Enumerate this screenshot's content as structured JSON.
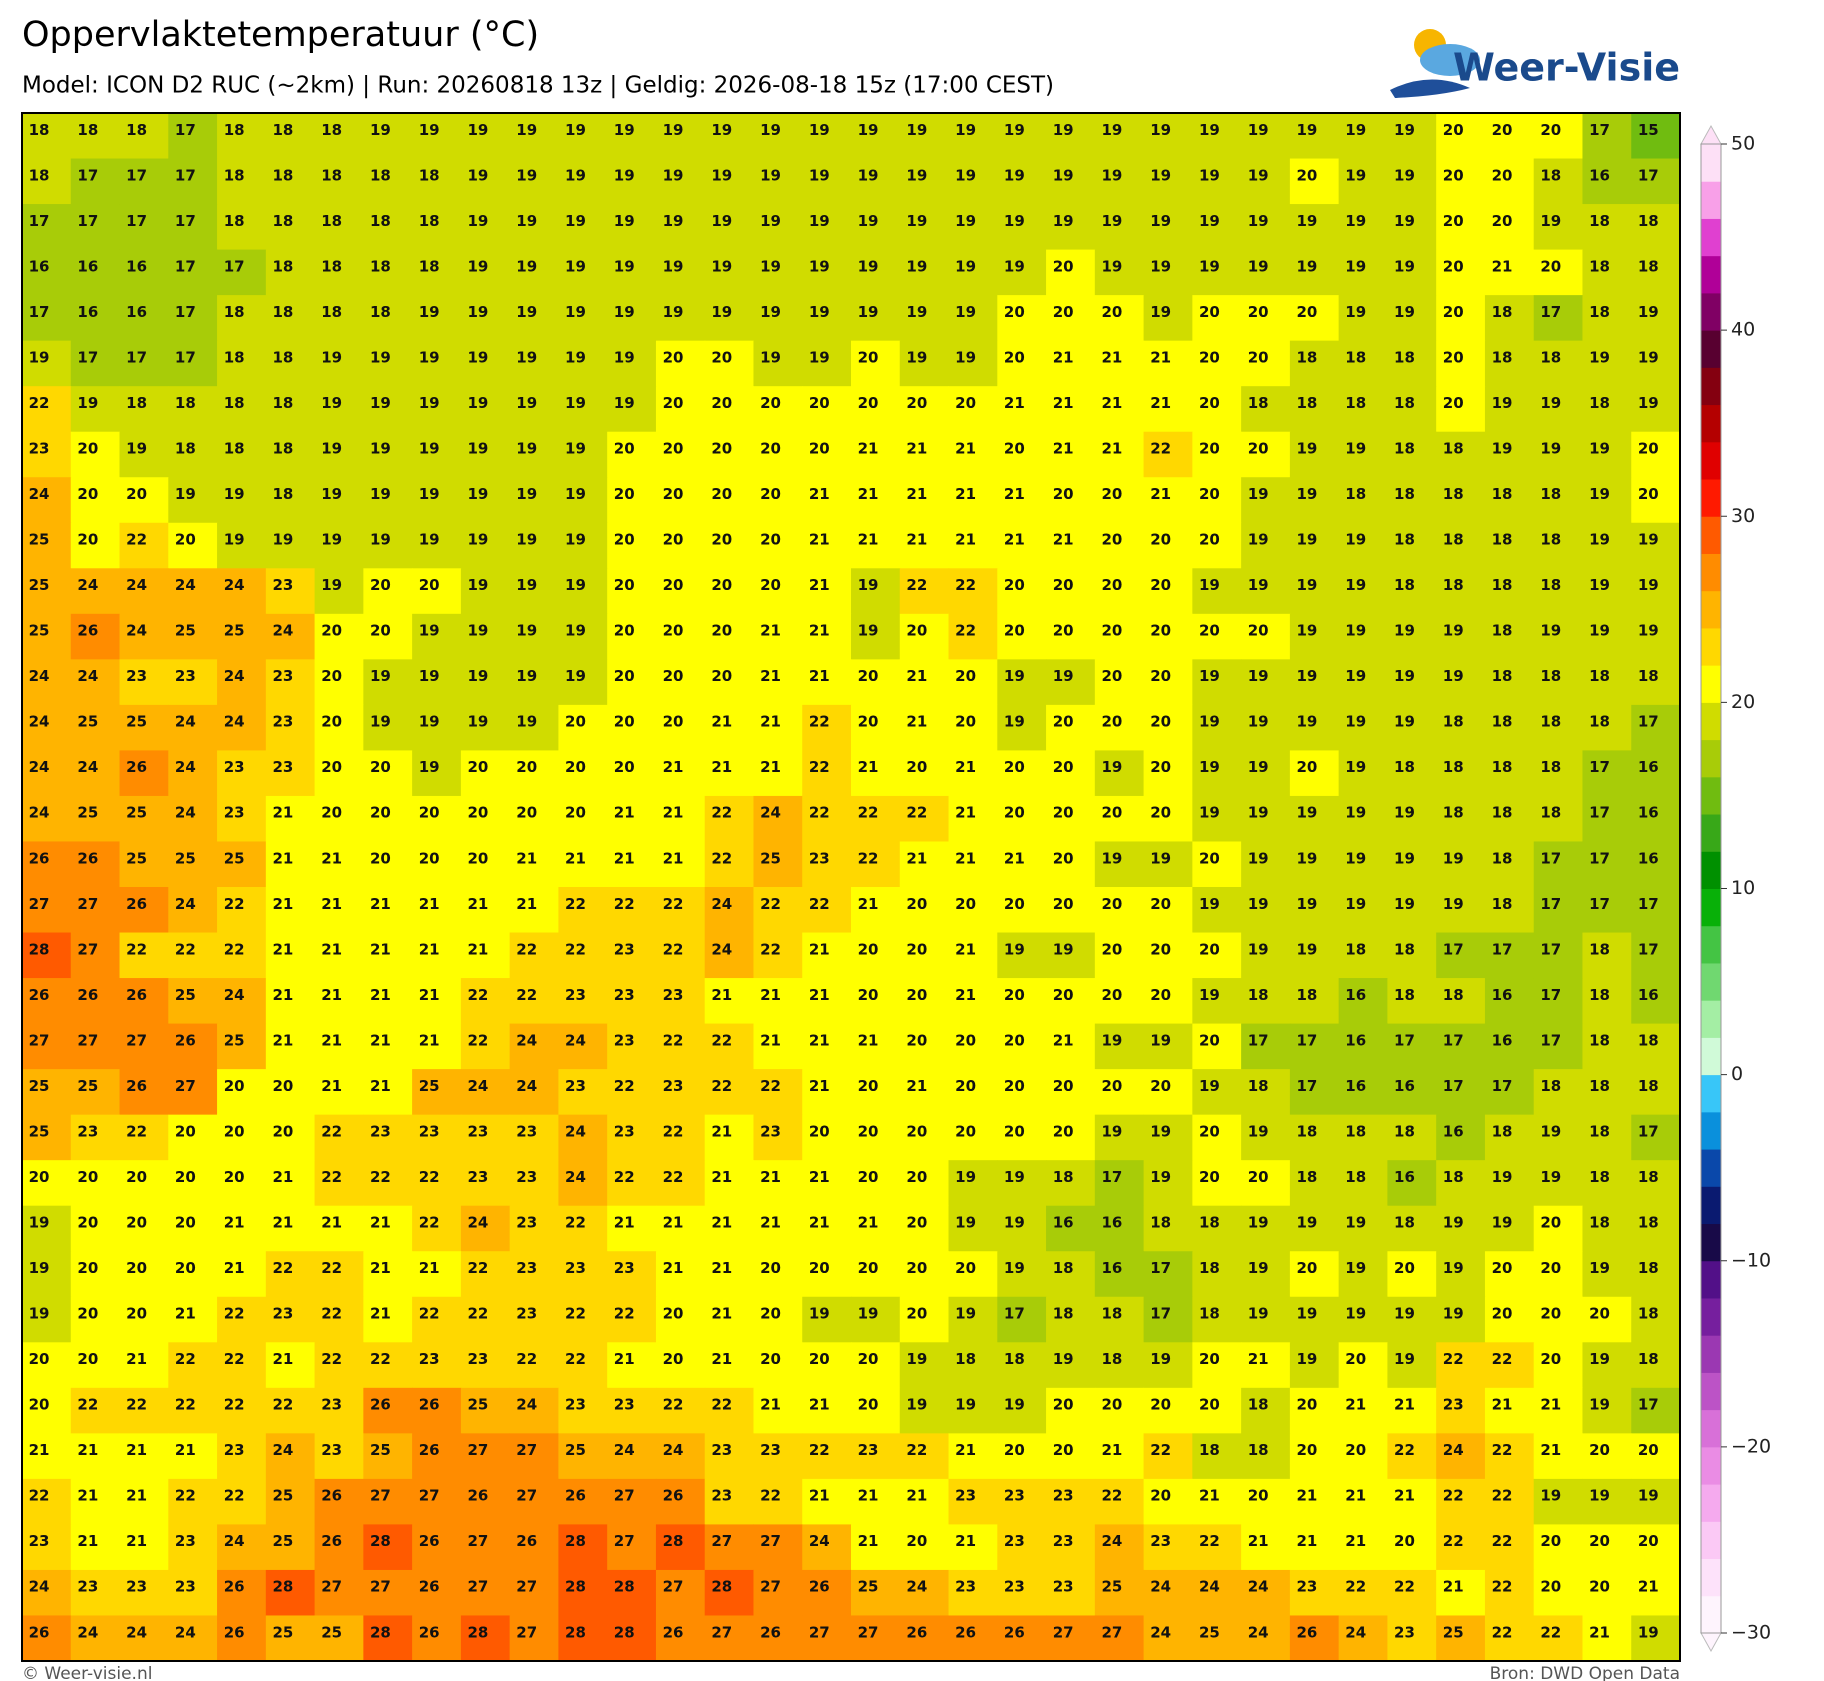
{
  "header": {
    "title": "Oppervlaktetemperatuur (°C)",
    "subtitle": "Model: ICON D2 RUC (~2km)  |  Run: 20260818 13z  |  Geldig: 2026-08-18 15z (17:00 CEST)",
    "logo": "Weer-Visie"
  },
  "grid": {
    "rows": [
      [
        18,
        18,
        18,
        17,
        18,
        18,
        18,
        19,
        19,
        19,
        19,
        19,
        19,
        19,
        19,
        19,
        19,
        19,
        19,
        19,
        19,
        19,
        19,
        19,
        19,
        19,
        19,
        19,
        19,
        20,
        20,
        20,
        17,
        15
      ],
      [
        18,
        17,
        17,
        17,
        18,
        18,
        18,
        18,
        18,
        19,
        19,
        19,
        19,
        19,
        19,
        19,
        19,
        19,
        19,
        19,
        19,
        19,
        19,
        19,
        19,
        19,
        20,
        19,
        19,
        20,
        20,
        18,
        16,
        17
      ],
      [
        17,
        17,
        17,
        17,
        18,
        18,
        18,
        18,
        18,
        19,
        19,
        19,
        19,
        19,
        19,
        19,
        19,
        19,
        19,
        19,
        19,
        19,
        19,
        19,
        19,
        19,
        19,
        19,
        19,
        20,
        20,
        19,
        18,
        18
      ],
      [
        16,
        16,
        16,
        17,
        17,
        18,
        18,
        18,
        18,
        19,
        19,
        19,
        19,
        19,
        19,
        19,
        19,
        19,
        19,
        19,
        19,
        20,
        19,
        19,
        19,
        19,
        19,
        19,
        19,
        20,
        21,
        20,
        18,
        18
      ],
      [
        17,
        16,
        16,
        17,
        18,
        18,
        18,
        18,
        19,
        19,
        19,
        19,
        19,
        19,
        19,
        19,
        19,
        19,
        19,
        19,
        20,
        20,
        20,
        19,
        20,
        20,
        20,
        19,
        19,
        20,
        18,
        17,
        18,
        19
      ],
      [
        19,
        17,
        17,
        17,
        18,
        18,
        19,
        19,
        19,
        19,
        19,
        19,
        19,
        20,
        20,
        19,
        19,
        20,
        19,
        19,
        20,
        21,
        21,
        21,
        20,
        20,
        18,
        18,
        18,
        20,
        18,
        18,
        19,
        19
      ],
      [
        22,
        19,
        18,
        18,
        18,
        18,
        19,
        19,
        19,
        19,
        19,
        19,
        19,
        20,
        20,
        20,
        20,
        20,
        20,
        20,
        21,
        21,
        21,
        21,
        20,
        18,
        18,
        18,
        18,
        20,
        19,
        19,
        18,
        19
      ],
      [
        23,
        20,
        19,
        18,
        18,
        18,
        19,
        19,
        19,
        19,
        19,
        19,
        20,
        20,
        20,
        20,
        20,
        21,
        21,
        21,
        20,
        21,
        21,
        22,
        20,
        20,
        19,
        19,
        18,
        18,
        19,
        19,
        19,
        20
      ],
      [
        24,
        20,
        20,
        19,
        19,
        18,
        19,
        19,
        19,
        19,
        19,
        19,
        20,
        20,
        20,
        20,
        21,
        21,
        21,
        21,
        21,
        20,
        20,
        21,
        20,
        19,
        19,
        18,
        18,
        18,
        18,
        18,
        19,
        20
      ],
      [
        25,
        20,
        22,
        20,
        19,
        19,
        19,
        19,
        19,
        19,
        19,
        19,
        20,
        20,
        20,
        20,
        21,
        21,
        21,
        21,
        21,
        21,
        20,
        20,
        20,
        19,
        19,
        19,
        18,
        18,
        18,
        18,
        19,
        19
      ],
      [
        25,
        24,
        24,
        24,
        24,
        23,
        19,
        20,
        20,
        19,
        19,
        19,
        20,
        20,
        20,
        20,
        21,
        19,
        22,
        22,
        20,
        20,
        20,
        20,
        19,
        19,
        19,
        19,
        18,
        18,
        18,
        18,
        19,
        19
      ],
      [
        25,
        26,
        24,
        25,
        25,
        24,
        20,
        20,
        19,
        19,
        19,
        19,
        20,
        20,
        20,
        21,
        21,
        19,
        20,
        22,
        20,
        20,
        20,
        20,
        20,
        20,
        19,
        19,
        19,
        19,
        18,
        19,
        19,
        19
      ],
      [
        24,
        24,
        23,
        23,
        24,
        23,
        20,
        19,
        19,
        19,
        19,
        19,
        20,
        20,
        20,
        21,
        21,
        20,
        21,
        20,
        19,
        19,
        20,
        20,
        19,
        19,
        19,
        19,
        19,
        19,
        18,
        18,
        18,
        18
      ],
      [
        24,
        25,
        25,
        24,
        24,
        23,
        20,
        19,
        19,
        19,
        19,
        20,
        20,
        20,
        21,
        21,
        22,
        20,
        21,
        20,
        19,
        20,
        20,
        20,
        19,
        19,
        19,
        19,
        19,
        18,
        18,
        18,
        18,
        17
      ],
      [
        24,
        24,
        26,
        24,
        23,
        23,
        20,
        20,
        19,
        20,
        20,
        20,
        20,
        21,
        21,
        21,
        22,
        21,
        20,
        21,
        20,
        20,
        19,
        20,
        19,
        19,
        20,
        19,
        18,
        18,
        18,
        18,
        17,
        16
      ],
      [
        24,
        25,
        25,
        24,
        23,
        21,
        20,
        20,
        20,
        20,
        20,
        20,
        21,
        21,
        22,
        24,
        22,
        22,
        22,
        21,
        20,
        20,
        20,
        20,
        19,
        19,
        19,
        19,
        19,
        18,
        18,
        18,
        17,
        16
      ],
      [
        26,
        26,
        25,
        25,
        25,
        21,
        21,
        20,
        20,
        20,
        21,
        21,
        21,
        21,
        22,
        25,
        23,
        22,
        21,
        21,
        21,
        20,
        19,
        19,
        20,
        19,
        19,
        19,
        19,
        19,
        18,
        17,
        17,
        16
      ],
      [
        27,
        27,
        26,
        24,
        22,
        21,
        21,
        21,
        21,
        21,
        21,
        22,
        22,
        22,
        24,
        22,
        22,
        21,
        20,
        20,
        20,
        20,
        20,
        20,
        19,
        19,
        19,
        19,
        19,
        19,
        18,
        17,
        17,
        17
      ],
      [
        28,
        27,
        22,
        22,
        22,
        21,
        21,
        21,
        21,
        21,
        22,
        22,
        23,
        22,
        24,
        22,
        21,
        20,
        20,
        21,
        19,
        19,
        20,
        20,
        20,
        19,
        19,
        18,
        18,
        17,
        17,
        17,
        18,
        17
      ],
      [
        26,
        26,
        26,
        25,
        24,
        21,
        21,
        21,
        21,
        22,
        22,
        23,
        23,
        23,
        21,
        21,
        21,
        20,
        20,
        21,
        20,
        20,
        20,
        20,
        19,
        18,
        18,
        16,
        18,
        18,
        16,
        17,
        18,
        16
      ],
      [
        27,
        27,
        27,
        26,
        25,
        21,
        21,
        21,
        21,
        22,
        24,
        24,
        23,
        22,
        22,
        21,
        21,
        21,
        20,
        20,
        20,
        21,
        19,
        19,
        20,
        17,
        17,
        16,
        17,
        17,
        16,
        17,
        18,
        18
      ],
      [
        25,
        25,
        26,
        27,
        20,
        20,
        21,
        21,
        25,
        24,
        24,
        23,
        22,
        23,
        22,
        22,
        21,
        20,
        21,
        20,
        20,
        20,
        20,
        20,
        19,
        18,
        17,
        16,
        16,
        17,
        17,
        18,
        18,
        18
      ],
      [
        25,
        23,
        22,
        20,
        20,
        20,
        22,
        23,
        23,
        23,
        23,
        24,
        23,
        22,
        21,
        23,
        20,
        20,
        20,
        20,
        20,
        20,
        19,
        19,
        20,
        19,
        18,
        18,
        18,
        16,
        18,
        19,
        18,
        17
      ],
      [
        20,
        20,
        20,
        20,
        20,
        21,
        22,
        22,
        22,
        23,
        23,
        24,
        22,
        22,
        21,
        21,
        21,
        20,
        20,
        19,
        19,
        18,
        17,
        19,
        20,
        20,
        18,
        18,
        16,
        18,
        19,
        19,
        18,
        18
      ],
      [
        19,
        20,
        20,
        20,
        21,
        21,
        21,
        21,
        22,
        24,
        23,
        22,
        21,
        21,
        21,
        21,
        21,
        21,
        20,
        19,
        19,
        16,
        16,
        18,
        18,
        19,
        19,
        19,
        18,
        19,
        19,
        20,
        18,
        18
      ],
      [
        19,
        20,
        20,
        20,
        21,
        22,
        22,
        21,
        21,
        22,
        23,
        23,
        23,
        21,
        21,
        20,
        20,
        20,
        20,
        20,
        19,
        18,
        16,
        17,
        18,
        19,
        20,
        19,
        20,
        19,
        20,
        20,
        19,
        18
      ],
      [
        19,
        20,
        20,
        21,
        22,
        23,
        22,
        21,
        22,
        22,
        23,
        22,
        22,
        20,
        21,
        20,
        19,
        19,
        20,
        19,
        17,
        18,
        18,
        17,
        18,
        19,
        19,
        19,
        19,
        19,
        20,
        20,
        20,
        18
      ],
      [
        20,
        20,
        21,
        22,
        22,
        21,
        22,
        22,
        23,
        23,
        22,
        22,
        21,
        20,
        21,
        20,
        20,
        20,
        19,
        18,
        18,
        19,
        18,
        19,
        20,
        21,
        19,
        20,
        19,
        22,
        22,
        20,
        19,
        18
      ],
      [
        20,
        22,
        22,
        22,
        22,
        22,
        23,
        26,
        26,
        25,
        24,
        23,
        23,
        22,
        22,
        21,
        21,
        20,
        19,
        19,
        19,
        20,
        20,
        20,
        20,
        18,
        20,
        21,
        21,
        23,
        21,
        21,
        19,
        17
      ],
      [
        21,
        21,
        21,
        21,
        23,
        24,
        23,
        25,
        26,
        27,
        27,
        25,
        24,
        24,
        23,
        23,
        22,
        23,
        22,
        21,
        20,
        20,
        21,
        22,
        18,
        18,
        20,
        20,
        22,
        24,
        22,
        21,
        20,
        20
      ],
      [
        22,
        21,
        21,
        22,
        22,
        25,
        26,
        27,
        27,
        26,
        27,
        26,
        27,
        26,
        23,
        22,
        21,
        21,
        21,
        23,
        23,
        23,
        22,
        20,
        21,
        20,
        21,
        21,
        21,
        22,
        22,
        19,
        19,
        19
      ],
      [
        23,
        21,
        21,
        23,
        24,
        25,
        26,
        28,
        26,
        27,
        26,
        28,
        27,
        28,
        27,
        27,
        24,
        21,
        20,
        21,
        23,
        23,
        24,
        23,
        22,
        21,
        21,
        21,
        20,
        22,
        22,
        20,
        20,
        20
      ],
      [
        24,
        23,
        23,
        23,
        26,
        28,
        27,
        27,
        26,
        27,
        27,
        28,
        28,
        27,
        28,
        27,
        26,
        25,
        24,
        23,
        23,
        23,
        25,
        24,
        24,
        24,
        23,
        22,
        22,
        21,
        22,
        20,
        20,
        21
      ],
      [
        26,
        24,
        24,
        24,
        26,
        25,
        25,
        28,
        26,
        28,
        27,
        28,
        28,
        26,
        27,
        26,
        27,
        27,
        26,
        26,
        26,
        27,
        27,
        24,
        25,
        24,
        26,
        24,
        23,
        25,
        22,
        22,
        21,
        19
      ]
    ]
  },
  "colorbar": {
    "lim": [
      -30,
      50
    ],
    "ticks": [
      50,
      40,
      30,
      20,
      10,
      0,
      {
        "value": -10,
        "label": "−10"
      },
      {
        "value": -20,
        "label": "−20"
      },
      {
        "value": -30,
        "label": "−30"
      }
    ],
    "colors": [
      "#fef4fd",
      "#fde2fa",
      "#fbc9f5",
      "#f5aaee",
      "#ea8ce4",
      "#d870d8",
      "#bc53c6",
      "#9b38b2",
      "#761f9e",
      "#521088",
      "#180a48",
      "#0a1a70",
      "#0a48aa",
      "#0a90dc",
      "#38c6f8",
      "#d0fad8",
      "#a4eea4",
      "#70d870",
      "#44c444",
      "#08b008",
      "#009000",
      "#38a818",
      "#70bc10",
      "#a8cc08",
      "#d0dc00",
      "#ffff00",
      "#ffd800",
      "#ffb400",
      "#ff8c00",
      "#ff5a00",
      "#ff1a00",
      "#e00000",
      "#b40000",
      "#840010",
      "#580030",
      "#800064",
      "#b00098",
      "#e040d0",
      "#f8a0e8",
      "#fde0f6"
    ]
  },
  "footer": {
    "left": "© Weer-visie.nl",
    "right": "Bron: DWD Open Data"
  }
}
